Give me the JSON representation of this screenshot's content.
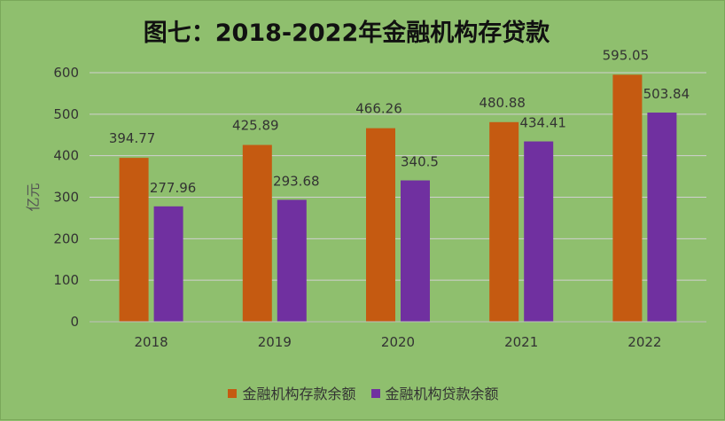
{
  "chart_data": {
    "type": "bar",
    "title": "图七：2018-2022年金融机构存贷款",
    "xlabel": "",
    "ylabel": "亿元",
    "categories": [
      "2018",
      "2019",
      "2020",
      "2021",
      "2022"
    ],
    "series": [
      {
        "name": "金融机构存款余额",
        "color": "#c55a11",
        "values": [
          394.77,
          425.89,
          466.26,
          480.88,
          595.05
        ],
        "labels": [
          "394.77",
          "425.89",
          "466.26",
          "480.88",
          "595.05"
        ]
      },
      {
        "name": "金融机构贷款余额",
        "color": "#7030a0",
        "values": [
          277.96,
          293.68,
          340.5,
          434.41,
          503.84
        ],
        "labels": [
          "277.96",
          "293.68",
          "340.5",
          "434.41",
          "503.84"
        ]
      }
    ],
    "ylim": [
      0,
      600
    ],
    "yticks": [
      "0",
      "100",
      "200",
      "300",
      "400",
      "500",
      "600"
    ],
    "grid": true,
    "legend": "bottom"
  }
}
